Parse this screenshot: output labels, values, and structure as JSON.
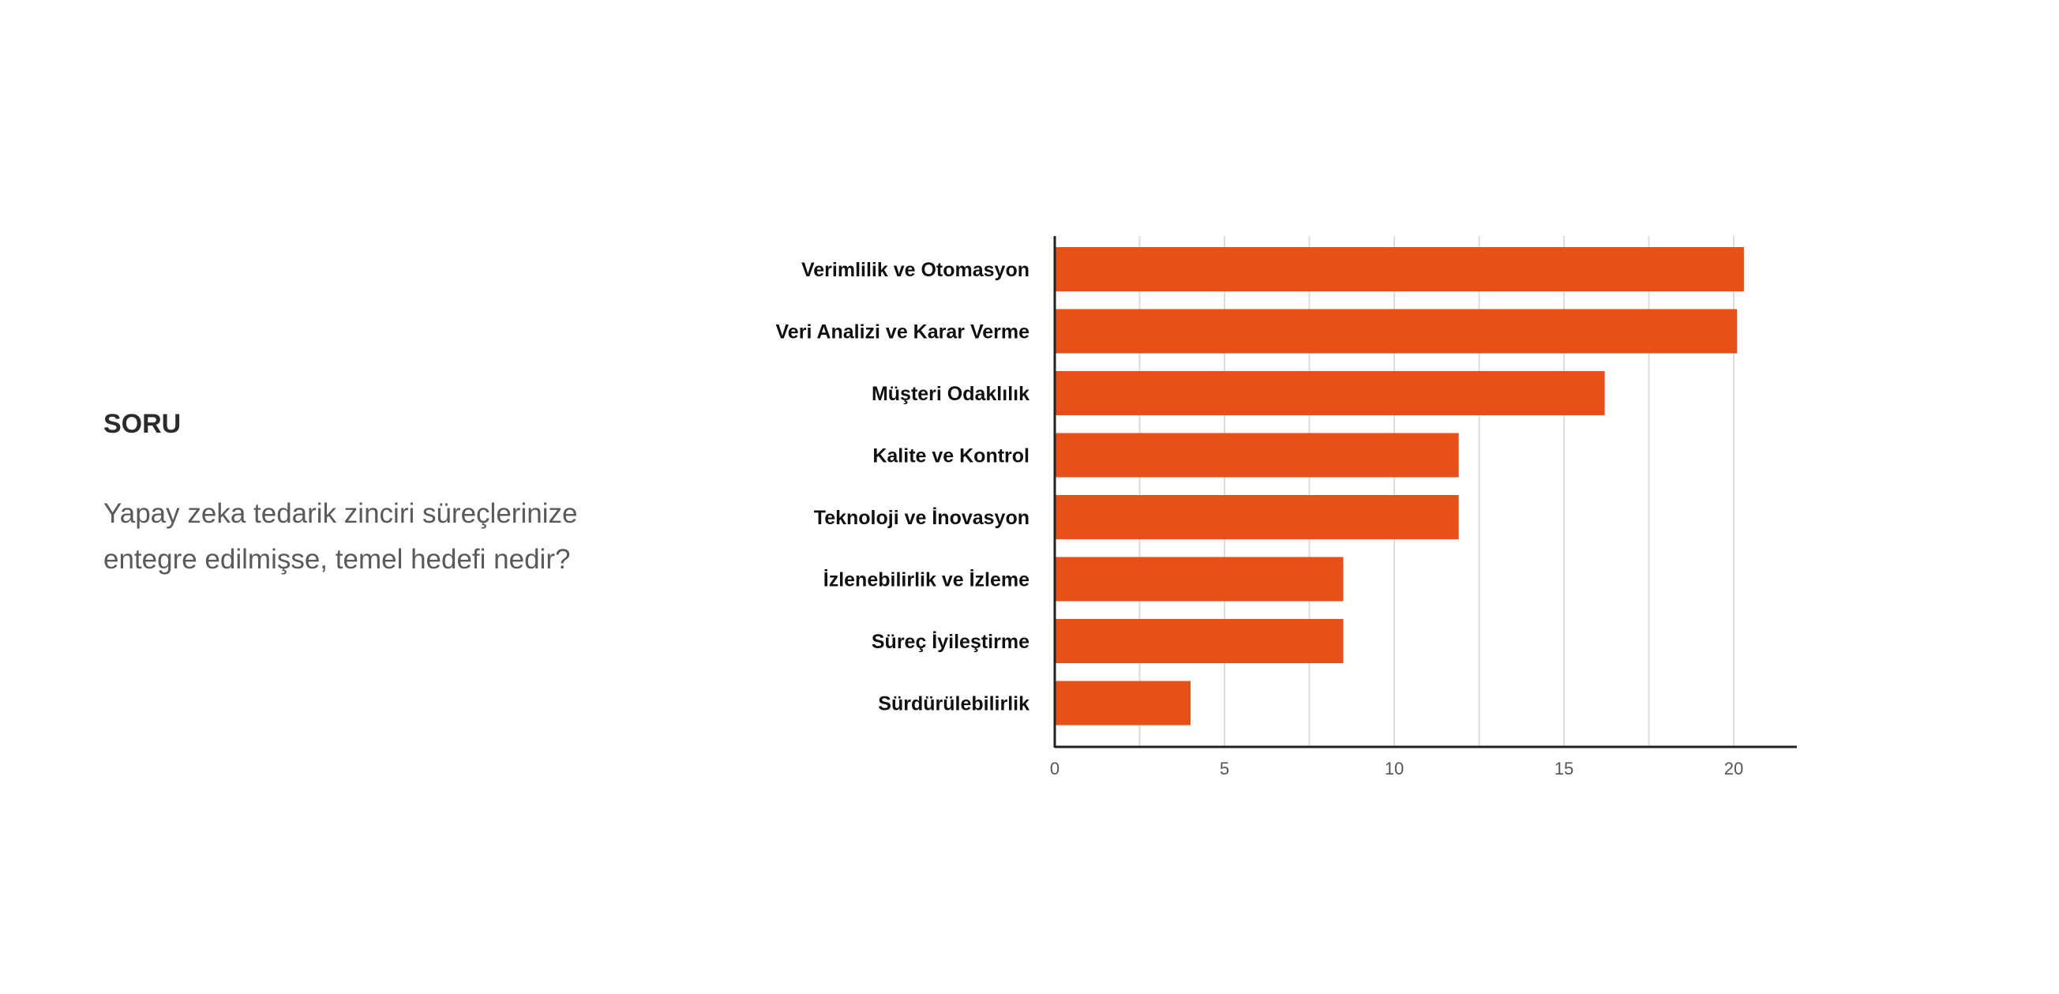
{
  "left_panel": {
    "heading": "SORU",
    "question": "Yapay zeka tedarik zinciri süreçlerinize entegre edilmişse, temel hedefi nedir?"
  },
  "chart_data": {
    "type": "bar",
    "orientation": "horizontal",
    "title": "",
    "xlabel": "",
    "ylabel": "",
    "categories": [
      "Verimlilik ve Otomasyon",
      "Veri Analizi ve Karar Verme",
      "Müşteri Odaklılık",
      "Kalite ve Kontrol",
      "Teknoloji ve İnovasyon",
      "İzlenebilirlik ve İzleme",
      "Süreç İyileştirme",
      "Sürdürülebilirlik"
    ],
    "values": [
      20.3,
      20.1,
      16.2,
      11.9,
      11.9,
      8.5,
      8.5,
      4.0
    ],
    "xlim": [
      0,
      22
    ],
    "xticks": [
      "0",
      "5",
      "10",
      "15",
      "20"
    ],
    "grid": true,
    "bar_color": "#E8501A"
  }
}
